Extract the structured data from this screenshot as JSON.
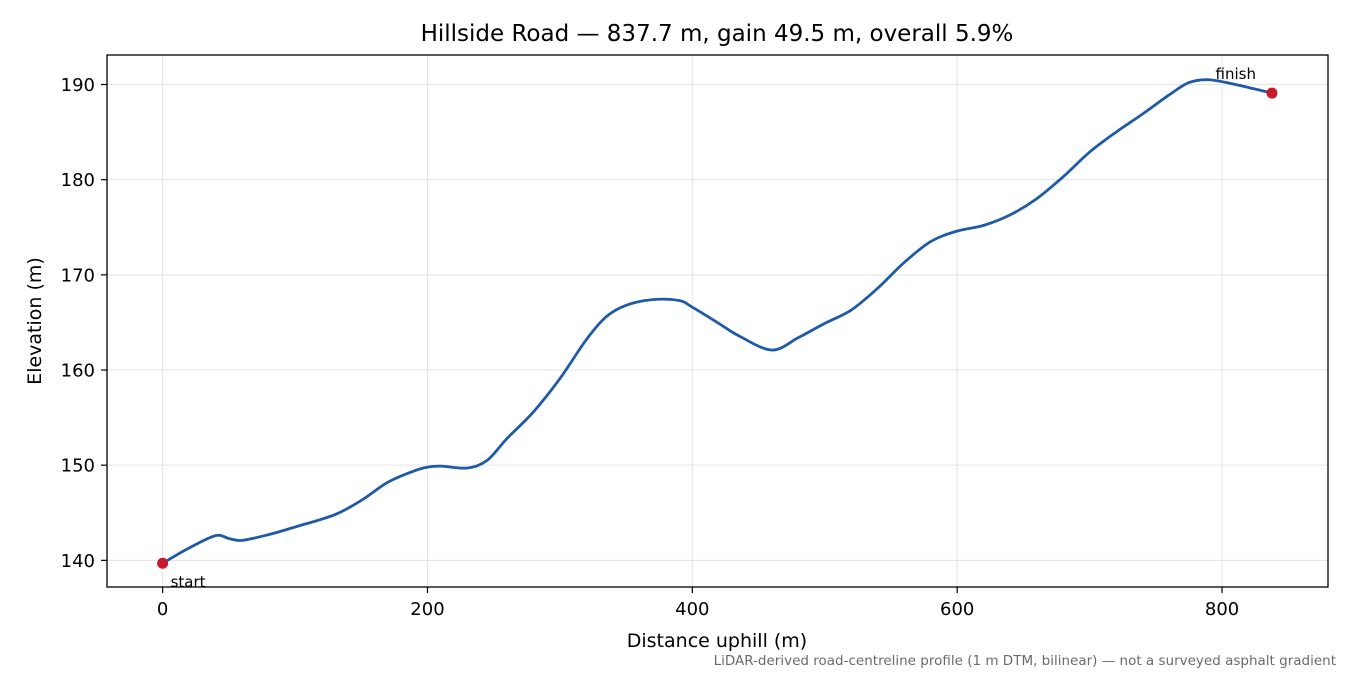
{
  "chart_data": {
    "type": "line",
    "title": "Hillside Road — 837.7 m, gain 49.5 m, overall 5.9%",
    "xlabel": "Distance uphill (m)",
    "ylabel": "Elevation (m)",
    "xlim": [
      -42,
      880
    ],
    "ylim": [
      137.2,
      193.1
    ],
    "xticks": [
      0,
      200,
      400,
      600,
      800
    ],
    "yticks": [
      140,
      150,
      160,
      170,
      180,
      190
    ],
    "grid": true,
    "series": [
      {
        "color": "#1f5aa6",
        "x": [
          0,
          20,
          40,
          50,
          60,
          80,
          100,
          130,
          150,
          170,
          190,
          200,
          210,
          230,
          245,
          260,
          280,
          300,
          320,
          335,
          350,
          370,
          390,
          400,
          420,
          435,
          460,
          480,
          500,
          520,
          540,
          560,
          580,
          600,
          620,
          640,
          660,
          680,
          700,
          720,
          740,
          760,
          775,
          790,
          810,
          837.7
        ],
        "y": [
          139.7,
          141.3,
          142.6,
          142.3,
          142.1,
          142.7,
          143.5,
          144.8,
          146.3,
          148.2,
          149.4,
          149.8,
          149.9,
          149.7,
          150.5,
          152.8,
          155.6,
          159.1,
          163.2,
          165.6,
          166.8,
          167.4,
          167.3,
          166.6,
          164.9,
          163.6,
          162.1,
          163.4,
          164.9,
          166.3,
          168.6,
          171.3,
          173.5,
          174.6,
          175.2,
          176.3,
          178.0,
          180.3,
          182.9,
          185.0,
          186.9,
          188.9,
          190.2,
          190.5,
          190.0,
          189.1
        ]
      }
    ],
    "markers": [
      {
        "label": "start",
        "x": 0,
        "y": 139.7,
        "color": "#c8182d"
      },
      {
        "label": "finish",
        "x": 837.7,
        "y": 189.1,
        "color": "#c8182d"
      }
    ],
    "footnote": "LiDAR-derived road-centreline profile (1 m DTM, bilinear) — not a surveyed asphalt gradient"
  }
}
